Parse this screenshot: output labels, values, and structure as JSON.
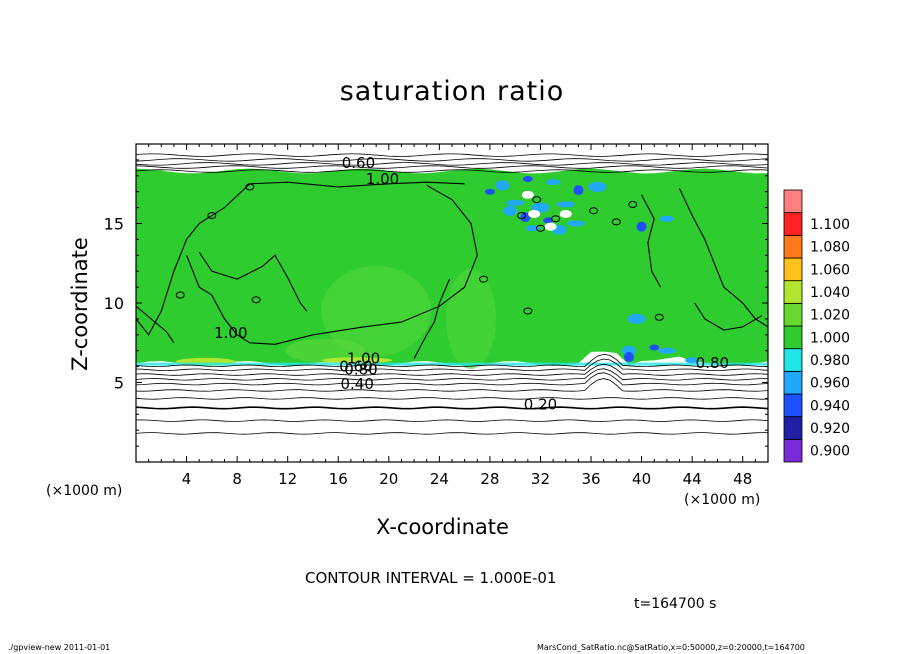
{
  "chart_data": {
    "type": "heatmap",
    "title": "saturation ratio",
    "xlabel": "X-coordinate",
    "ylabel": "Z-coordinate",
    "x_unit": "(×1000 m)",
    "y_unit": "(×1000 m)",
    "xlim": [
      0,
      50
    ],
    "ylim": [
      0,
      20
    ],
    "x_ticks": [
      4,
      8,
      12,
      16,
      20,
      24,
      28,
      32,
      36,
      40,
      44,
      48
    ],
    "y_ticks": [
      5,
      10,
      15
    ],
    "colorbar": {
      "levels": [
        "0.900",
        "0.920",
        "0.940",
        "0.960",
        "0.980",
        "1.000",
        "1.020",
        "1.040",
        "1.060",
        "1.080",
        "1.100"
      ],
      "colors": [
        "#7a2ad6",
        "#1f1fa8",
        "#1f50ff",
        "#22a8ff",
        "#22e6e6",
        "#2ecc2e",
        "#66d92e",
        "#b0e62e",
        "#ffc21a",
        "#ff7a1a",
        "#ff2222",
        "#ff7f7f"
      ]
    },
    "field": {
      "dominant_value": "1.00",
      "dominant_color": "#2ecc2e",
      "moist_layer_z": [
        6.2,
        18.5
      ]
    },
    "contour_labels": [
      {
        "text": "0.60",
        "x": 17.6,
        "z": 18.5
      },
      {
        "text": "1.00",
        "x": 19.5,
        "z": 17.5
      },
      {
        "text": "1.00",
        "x": 7.5,
        "z": 7.8
      },
      {
        "text": "1.00",
        "x": 18.0,
        "z": 6.2
      },
      {
        "text": "0.60",
        "x": 17.4,
        "z": 5.7
      },
      {
        "text": "0.80",
        "x": 17.8,
        "z": 5.5
      },
      {
        "text": "0.40",
        "x": 17.5,
        "z": 4.6
      },
      {
        "text": "0.20",
        "x": 32.0,
        "z": 3.3
      },
      {
        "text": "0.80",
        "x": 45.6,
        "z": 5.9
      }
    ],
    "contour_interval": "CONTOUR INTERVAL = 1.000E-01",
    "time_label": "t=164700  s"
  },
  "footer": {
    "left": "./gpview-new   2011-01-01",
    "right": "MarsCond_SatRatio.nc@SatRatio,x=0:50000,z=0:20000,t=164700"
  }
}
